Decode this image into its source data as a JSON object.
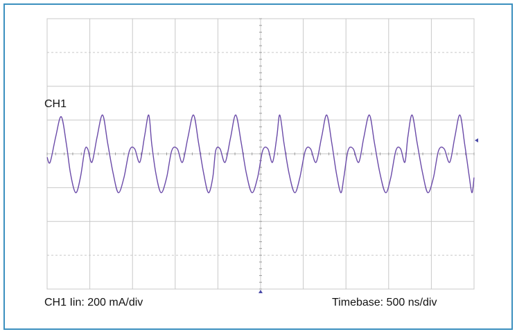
{
  "colors": {
    "frame_border": "#3a8fbe",
    "grid": "#c8c8c8",
    "trace": "#6a4aa8",
    "marker": "#4a4aa8"
  },
  "labels": {
    "channel": "CH1",
    "vertical_scale": "CH1 Iin: 200 mA/div",
    "timebase": "Timebase: 500 ns/div"
  },
  "chart_data": {
    "type": "line",
    "grid": true,
    "x_divisions": 10,
    "y_divisions": 8,
    "x_range_div": [
      0,
      10
    ],
    "y_range_div": [
      -4,
      4
    ],
    "series": [
      {
        "x": [
          0,
          0.07,
          0.2,
          0.33,
          0.45,
          0.55,
          0.67,
          0.78,
          0.88,
          0.95,
          1.05,
          1.17,
          1.3,
          1.42,
          1.55,
          1.67,
          1.8,
          1.93,
          2.05,
          2.17,
          2.28,
          2.38,
          2.45,
          2.55,
          2.67,
          2.8,
          2.92,
          3.05,
          3.17,
          3.3,
          3.43,
          3.55,
          3.67,
          3.78,
          3.88,
          3.95,
          4.05,
          4.17,
          4.3,
          4.42,
          4.55,
          4.67,
          4.8,
          4.93,
          5.05,
          5.17,
          5.28,
          5.38,
          5.45,
          5.55,
          5.67,
          5.8,
          5.92,
          6.05,
          6.17,
          6.3,
          6.43,
          6.55,
          6.67,
          6.78,
          6.88,
          6.95,
          7.05,
          7.17,
          7.3,
          7.42,
          7.55,
          7.67,
          7.8,
          7.93,
          8.05,
          8.17,
          8.28,
          8.38,
          8.45,
          8.55,
          8.67,
          8.8,
          8.92,
          9.05,
          9.17,
          9.3,
          9.43,
          9.55,
          9.67,
          9.78,
          9.88,
          9.95,
          10.0
        ],
        "y": [
          -0.1,
          -0.25,
          0.5,
          1.1,
          0.3,
          -0.6,
          -1.15,
          -0.7,
          0.1,
          0.15,
          -0.25,
          0.5,
          1.15,
          0.3,
          -0.6,
          -1.15,
          -0.7,
          0.1,
          0.15,
          -0.25,
          0.5,
          1.15,
          0.3,
          -0.6,
          -1.15,
          -0.7,
          0.1,
          0.15,
          -0.25,
          0.5,
          1.15,
          0.3,
          -0.6,
          -1.15,
          -0.7,
          0.1,
          0.15,
          -0.25,
          0.5,
          1.15,
          0.3,
          -0.6,
          -1.15,
          -0.7,
          0.1,
          0.15,
          -0.25,
          0.5,
          1.15,
          0.3,
          -0.6,
          -1.15,
          -0.7,
          0.1,
          0.15,
          -0.25,
          0.5,
          1.15,
          0.3,
          -0.6,
          -1.15,
          -0.7,
          0.1,
          0.15,
          -0.25,
          0.5,
          1.15,
          0.3,
          -0.6,
          -1.15,
          -0.7,
          0.1,
          0.15,
          -0.25,
          0.5,
          1.15,
          0.3,
          -0.6,
          -1.15,
          -0.7,
          0.1,
          0.15,
          -0.25,
          0.5,
          1.15,
          0.3,
          -0.6,
          -1.15,
          -0.7
        ]
      }
    ]
  }
}
